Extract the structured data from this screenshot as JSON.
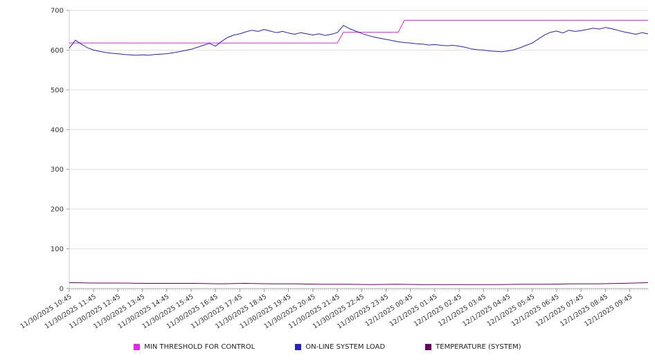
{
  "chart_data": {
    "type": "line",
    "title": "",
    "xlabel": "",
    "ylabel": "",
    "ylim": [
      0,
      700
    ],
    "yticks": [
      0,
      100,
      200,
      300,
      400,
      500,
      600,
      700
    ],
    "grid": "horizontal",
    "legend_position": "bottom",
    "x_labels": [
      "11/30/2025 10:45",
      "11/30/2025 11:45",
      "11/30/2025 12:45",
      "11/30/2025 13:45",
      "11/30/2025 14:45",
      "11/30/2025 15:45",
      "11/30/2025 16:45",
      "11/30/2025 17:45",
      "11/30/2025 18:45",
      "11/30/2025 19:45",
      "11/30/2025 20:45",
      "11/30/2025 21:45",
      "11/30/2025 22:45",
      "11/30/2025 23:45",
      "12/1/2025 00:45",
      "12/1/2025 01:45",
      "12/1/2025 02:45",
      "12/1/2025 03:45",
      "12/1/2025 04:45",
      "12/1/2025 05:45",
      "12/1/2025 06:45",
      "12/1/2025 07:45",
      "12/1/2025 08:45",
      "12/1/2025 09:45"
    ],
    "series": [
      {
        "name": "MIN THRESHOLD FOR CONTROL",
        "color": "#ee22ee",
        "values": [
          618,
          618,
          618,
          618,
          618,
          618,
          618,
          618,
          618,
          618,
          618,
          618,
          618,
          618,
          618,
          618,
          618,
          618,
          618,
          618,
          618,
          618,
          618,
          618,
          618,
          618,
          618,
          618,
          618,
          618,
          618,
          618,
          618,
          618,
          618,
          618,
          618,
          618,
          618,
          618,
          618,
          618,
          618,
          618,
          618,
          645,
          645,
          645,
          645,
          645,
          645,
          645,
          645,
          645,
          645,
          675,
          675,
          675,
          675,
          675,
          675,
          675,
          675,
          675,
          675,
          675,
          675,
          675,
          675,
          675,
          675,
          675,
          675,
          675,
          675,
          675,
          675,
          675,
          675,
          675,
          675,
          675,
          675,
          675,
          675,
          675,
          675,
          675,
          675,
          675,
          675,
          675,
          675,
          675,
          675,
          675
        ]
      },
      {
        "name": "ON-LINE SYSTEM LOAD",
        "color": "#2222cc",
        "values": [
          605,
          625,
          615,
          606,
          600,
          597,
          594,
          592,
          591,
          589,
          588,
          587,
          588,
          587,
          589,
          590,
          591,
          593,
          596,
          599,
          602,
          607,
          612,
          617,
          610,
          622,
          632,
          638,
          641,
          646,
          650,
          647,
          652,
          648,
          644,
          647,
          643,
          640,
          644,
          641,
          638,
          641,
          637,
          640,
          644,
          662,
          654,
          648,
          642,
          637,
          633,
          630,
          627,
          624,
          621,
          619,
          618,
          616,
          615,
          613,
          614,
          612,
          611,
          612,
          610,
          607,
          603,
          601,
          600,
          598,
          597,
          596,
          598,
          601,
          606,
          612,
          618,
          628,
          638,
          645,
          648,
          643,
          650,
          647,
          649,
          652,
          655,
          653,
          657,
          654,
          650,
          646,
          643,
          640,
          644,
          641
        ]
      },
      {
        "name": "TEMPERATURE (SYSTEM)",
        "color": "#660066",
        "values": [
          15,
          14,
          14,
          13,
          13,
          13,
          12,
          13,
          12,
          12,
          11,
          11,
          10,
          11,
          10,
          10,
          10,
          10,
          11,
          11,
          12,
          12,
          13,
          15
        ]
      }
    ]
  }
}
